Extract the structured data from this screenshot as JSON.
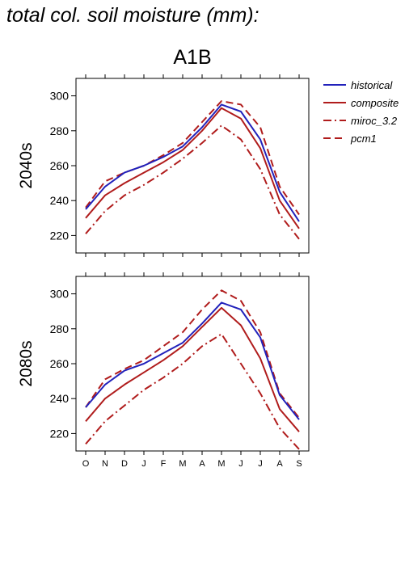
{
  "page_title": "total col. soil moisture (mm):",
  "colors": {
    "historical": "#2222bb",
    "models": "#b01c1c"
  },
  "chart_data": {
    "type": "line",
    "scenario": "A1B",
    "categories": [
      "O",
      "N",
      "D",
      "J",
      "F",
      "M",
      "A",
      "M",
      "J",
      "J",
      "A",
      "S"
    ],
    "ylim": [
      210,
      310
    ],
    "yticks": [
      220,
      240,
      260,
      280,
      300
    ],
    "grid": false,
    "legend_position": "right",
    "legend": [
      {
        "name": "historical",
        "color": "#2222bb",
        "dash": "solid"
      },
      {
        "name": "composite",
        "color": "#b01c1c",
        "dash": "solid"
      },
      {
        "name": "miroc_3.2",
        "color": "#b01c1c",
        "dash": "dashdot"
      },
      {
        "name": "pcm1",
        "color": "#b01c1c",
        "dash": "dashed"
      }
    ],
    "panels": [
      {
        "label": "2040s",
        "series": [
          {
            "name": "historical",
            "values": [
              235,
              248,
              256,
              260,
              265,
              271,
              282,
              295,
              291,
              275,
              245,
              228
            ]
          },
          {
            "name": "composite",
            "values": [
              230,
              243,
              250,
              256,
              262,
              269,
              280,
              293,
              287,
              270,
              240,
              224
            ]
          },
          {
            "name": "miroc_3.2",
            "values": [
              221,
              234,
              243,
              249,
              256,
              264,
              273,
              283,
              275,
              258,
              232,
              218
            ]
          },
          {
            "name": "pcm1",
            "values": [
              236,
              251,
              256,
              260,
              266,
              273,
              285,
              297,
              295,
              282,
              248,
              232
            ]
          }
        ]
      },
      {
        "label": "2080s",
        "series": [
          {
            "name": "historical",
            "values": [
              235,
              248,
              256,
              260,
              266,
              272,
              283,
              295,
              291,
              275,
              242,
              228
            ]
          },
          {
            "name": "composite",
            "values": [
              227,
              240,
              248,
              255,
              262,
              270,
              281,
              292,
              282,
              263,
              234,
              221
            ]
          },
          {
            "name": "miroc_3.2",
            "values": [
              214,
              227,
              236,
              245,
              252,
              260,
              270,
              277,
              260,
              243,
              223,
              211
            ]
          },
          {
            "name": "pcm1",
            "values": [
              235,
              251,
              257,
              262,
              270,
              278,
              291,
              302,
              296,
              278,
              243,
              229
            ]
          }
        ]
      }
    ]
  }
}
